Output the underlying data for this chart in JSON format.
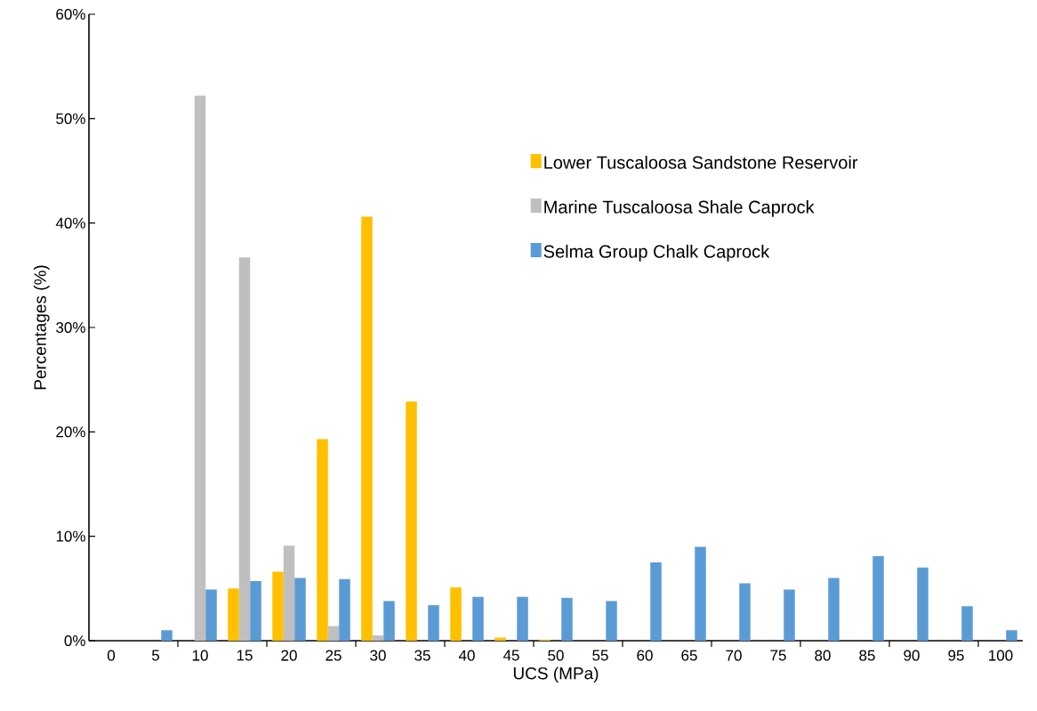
{
  "chart_data": {
    "type": "bar",
    "xlabel": "UCS (MPa)",
    "ylabel": "Percentages (%)",
    "categories": [
      "0",
      "5",
      "10",
      "15",
      "20",
      "25",
      "30",
      "35",
      "40",
      "45",
      "50",
      "55",
      "60",
      "65",
      "70",
      "75",
      "80",
      "85",
      "90",
      "95",
      "100"
    ],
    "series": [
      {
        "name": "Lower Tuscaloosa Sandstone Reservoir",
        "color": "#ffc000",
        "values": [
          0,
          0,
          0,
          5.0,
          6.6,
          19.3,
          40.6,
          22.9,
          5.1,
          0.3,
          0.1,
          0,
          0,
          0,
          0,
          0,
          0,
          0,
          0,
          0,
          0
        ]
      },
      {
        "name": "Marine  Tuscaloosa Shale Caprock",
        "color": "#bfbfbf",
        "values": [
          0,
          0,
          52.2,
          36.7,
          9.1,
          1.4,
          0.5,
          null,
          0,
          0,
          0,
          0,
          0,
          0,
          0,
          0,
          0,
          0,
          0,
          0,
          0
        ]
      },
      {
        "name": "Selma Group Chalk Caprock",
        "color": "#5b9bd5",
        "values": [
          0,
          1.0,
          4.9,
          5.7,
          6.0,
          5.9,
          3.8,
          3.4,
          4.2,
          4.2,
          4.1,
          3.8,
          7.5,
          9.0,
          5.5,
          4.9,
          6.0,
          8.1,
          7.0,
          3.3,
          1.0
        ]
      }
    ],
    "ylim": [
      0,
      60
    ],
    "yticks": [
      {
        "value": 0,
        "label": "0%"
      },
      {
        "value": 10,
        "label": "10%"
      },
      {
        "value": 20,
        "label": "20%"
      },
      {
        "value": 30,
        "label": "30%"
      },
      {
        "value": 40,
        "label": "40%"
      },
      {
        "value": 50,
        "label": "50%"
      },
      {
        "value": 60,
        "label": "60%"
      }
    ],
    "grid": false,
    "legend": "right"
  }
}
